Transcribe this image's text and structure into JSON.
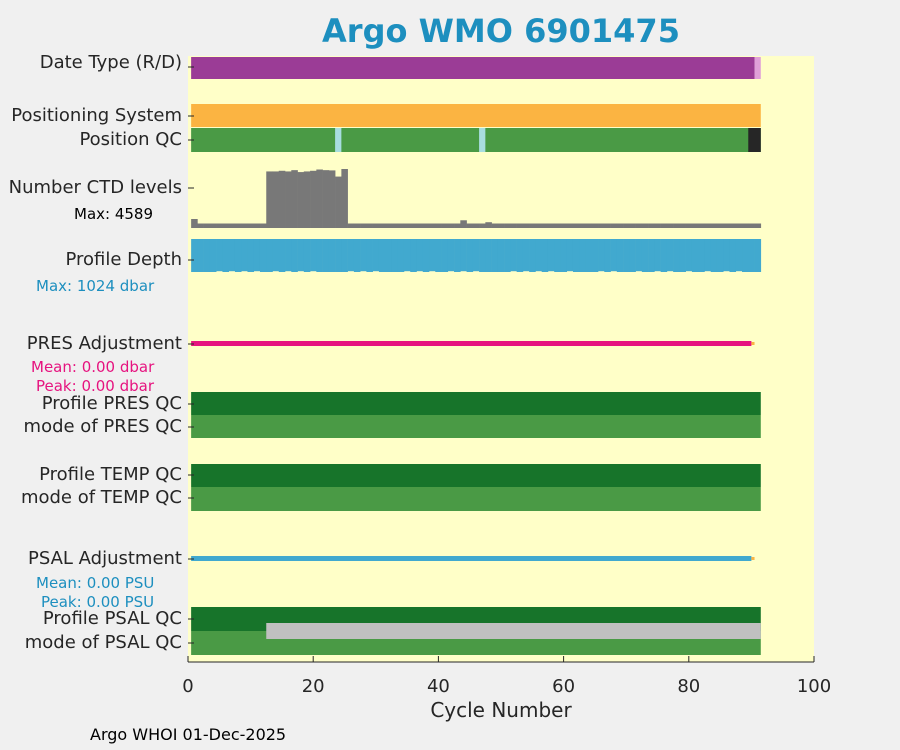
{
  "title": "Argo WMO 6901475",
  "footer": "Argo WHOI 01-Dec-2025",
  "rows": {
    "date_type": "Date Type (R/D)",
    "positioning": "Positioning System",
    "position_qc": "Position QC",
    "ctd_levels": "Number CTD levels",
    "ctd_max": "Max: 4589",
    "profile_depth": "Profile Depth",
    "depth_max": "Max: 1024 dbar",
    "pres_adj": "PRES Adjustment",
    "pres_mean": "Mean: 0.00 dbar",
    "pres_peak": "Peak: 0.00 dbar",
    "profile_pres_qc": "Profile PRES QC",
    "mode_pres_qc": "mode of PRES QC",
    "profile_temp_qc": "Profile TEMP QC",
    "mode_temp_qc": "mode of TEMP QC",
    "psal_adj": "PSAL Adjustment",
    "psal_mean": "Mean: 0.00 PSU",
    "psal_peak": "Peak: 0.00 PSU",
    "profile_psal_qc": "Profile PSAL QC",
    "mode_psal_qc": "mode of PSAL QC"
  },
  "colors": {
    "background": "#ffffc8",
    "date_realtime": "#9b3c96",
    "date_delayed": "#e0a0d8",
    "positioning": "#fbb442",
    "qc_good": "#4a9a45",
    "qc_good_dark": "#17742a",
    "qc_interp": "#a8dde0",
    "qc_missing": "#262626",
    "ctd": "#787878",
    "depth": "#41a9cf",
    "pres_adj": "#e6137f",
    "psal_adj": "#41a9cf",
    "adj_end": "#fbb442",
    "psal_qc_gray": "#c0c0c0",
    "accent_blue": "#1d8fbf",
    "accent_magenta": "#e6137f"
  },
  "chart_data": {
    "type": "bar",
    "xlabel": "Cycle Number",
    "xlim": [
      0,
      100
    ],
    "xticks": [
      0,
      20,
      40,
      60,
      80,
      100
    ],
    "last_cycle": 91,
    "date_type": {
      "realtime_cycles": [
        1,
        90
      ],
      "delayed_cycles": [
        91,
        91
      ]
    },
    "position_qc": {
      "interpolated_cycles": [
        24,
        47
      ],
      "missing_cycles": [
        90,
        91
      ]
    },
    "ctd_levels": {
      "max": 4589,
      "high_cycles": [
        13,
        25
      ],
      "values_high": [
        4400,
        4400,
        4450,
        4400,
        4500,
        4350,
        4400,
        4450,
        4550,
        4500,
        4480,
        4000,
        4589
      ],
      "low_value": 350,
      "spike_cycles": {
        "1": 700,
        "44": 600,
        "48": 450
      }
    },
    "profile_depth": {
      "max_dbar": 1024,
      "typical_dbar": 1000
    },
    "pres_adjustment": {
      "mean": 0.0,
      "peak": 0.0,
      "unit": "dbar"
    },
    "psal_adjustment": {
      "mean": 0.0,
      "peak": 0.0,
      "unit": "PSU"
    },
    "psal_qc_mode_gray_from_cycle": 13
  }
}
